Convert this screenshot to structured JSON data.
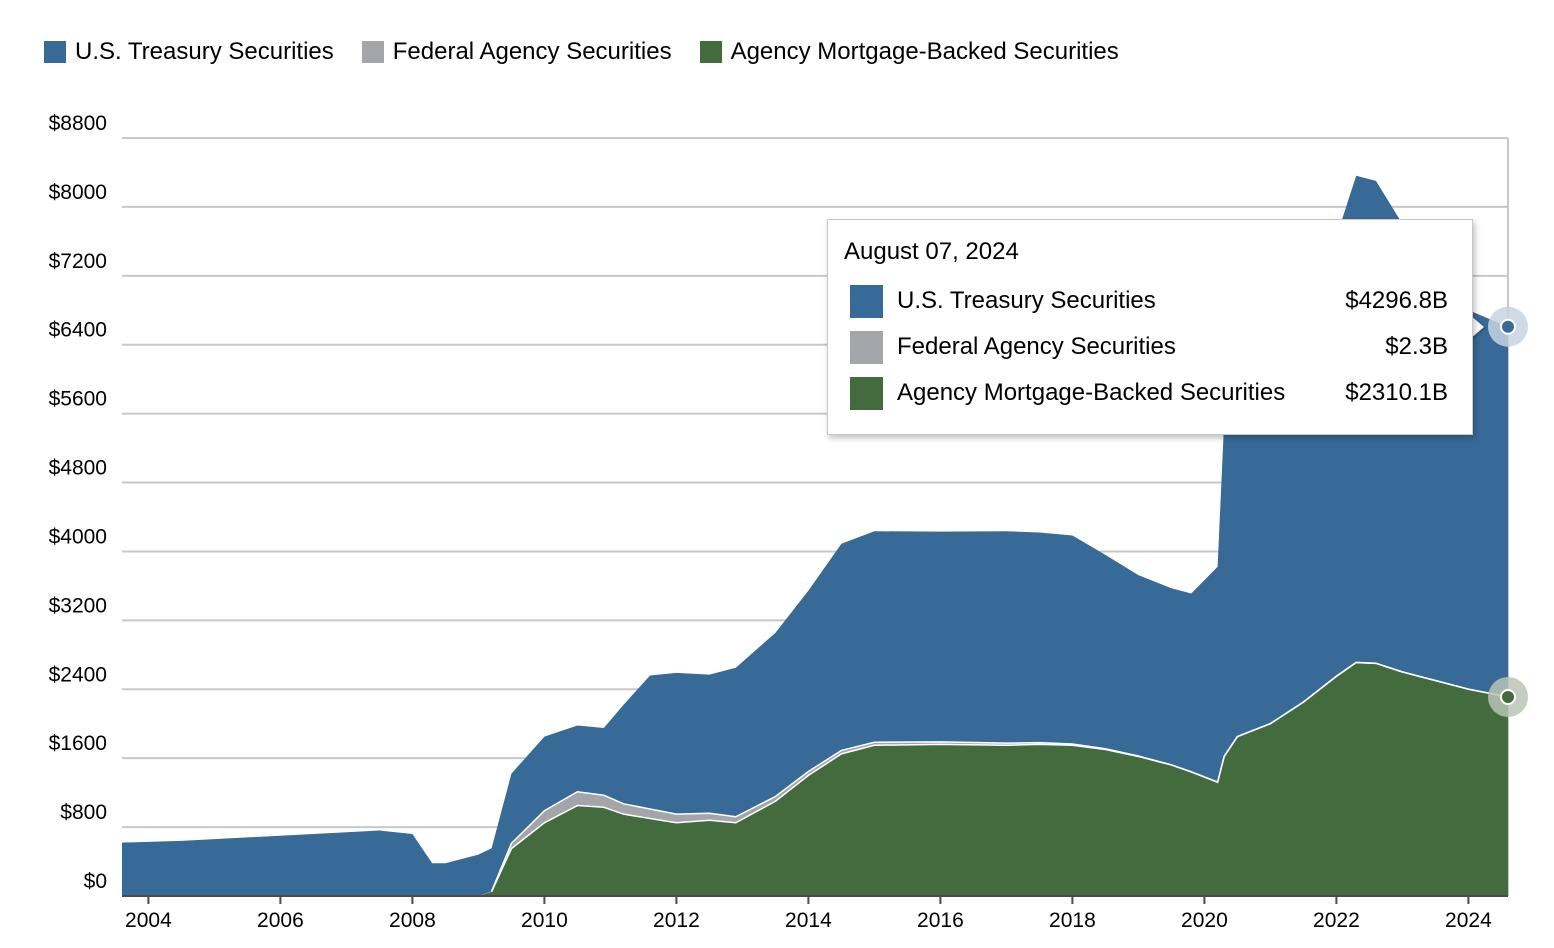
{
  "legend": [
    {
      "label": "U.S. Treasury Securities",
      "color": "#386a98"
    },
    {
      "label": "Federal Agency Securities",
      "color": "#a4a4ab"
    },
    {
      "label": "Agency Mortgage-Backed Securities",
      "color": "#436b3d"
    }
  ],
  "tooltip": {
    "date": "August 07, 2024",
    "rows": [
      {
        "label": "U.S. Treasury Securities",
        "value": "$4296.8B",
        "color": "#386a98"
      },
      {
        "label": "Federal Agency Securities",
        "value": "$2.3B",
        "color": "#a4a4ab"
      },
      {
        "label": "Agency Mortgage-Backed Securities",
        "value": "$2310.1B",
        "color": "#436b3d"
      }
    ]
  },
  "chart_data": {
    "type": "area",
    "stacked": true,
    "x_unit": "year",
    "xlim": [
      2003.6,
      2024.6
    ],
    "ylim": [
      0,
      8800
    ],
    "y_ticks": [
      0,
      800,
      1600,
      2400,
      3200,
      4000,
      4800,
      5600,
      6400,
      7200,
      8000,
      8800
    ],
    "y_tick_labels": [
      "$0",
      "$800",
      "$1600",
      "$2400",
      "$3200",
      "$4000",
      "$4800",
      "$5600",
      "$6400",
      "$7200",
      "$8000",
      "$8800"
    ],
    "x_ticks": [
      2004,
      2006,
      2008,
      2010,
      2012,
      2014,
      2016,
      2018,
      2020,
      2022,
      2024
    ],
    "x_tick_labels": [
      "2004",
      "2006",
      "2008",
      "2010",
      "2012",
      "2014",
      "2016",
      "2018",
      "2020",
      "2022",
      "2024"
    ],
    "grid": true,
    "legend_position": "top-left",
    "x": [
      2003.6,
      2004.5,
      2005.5,
      2006.5,
      2007.5,
      2008.0,
      2008.3,
      2008.5,
      2009.0,
      2009.2,
      2009.5,
      2010.0,
      2010.5,
      2010.9,
      2011.2,
      2011.6,
      2012.0,
      2012.5,
      2012.9,
      2013.5,
      2014.0,
      2014.5,
      2015.0,
      2016.0,
      2017.0,
      2017.5,
      2018.0,
      2018.5,
      2019.0,
      2019.5,
      2019.8,
      2020.2,
      2020.3,
      2020.5,
      2021.0,
      2021.5,
      2022.0,
      2022.3,
      2022.6,
      2023.0,
      2023.5,
      2024.0,
      2024.6
    ],
    "series": [
      {
        "name": "Agency Mortgage-Backed Securities",
        "color": "#436b3d",
        "values": [
          0,
          0,
          0,
          0,
          0,
          0,
          0,
          0,
          0,
          50,
          550,
          850,
          1050,
          1030,
          950,
          900,
          850,
          880,
          850,
          1100,
          1400,
          1650,
          1750,
          1760,
          1750,
          1760,
          1750,
          1700,
          1620,
          1520,
          1440,
          1320,
          1620,
          1850,
          2000,
          2250,
          2550,
          2710,
          2700,
          2600,
          2500,
          2400,
          2310.1
        ]
      },
      {
        "name": "Federal Agency Securities",
        "color": "#a4a4ab",
        "values": [
          0,
          0,
          0,
          0,
          0,
          0,
          0,
          0,
          0,
          5,
          60,
          140,
          160,
          140,
          120,
          110,
          100,
          80,
          70,
          55,
          45,
          40,
          35,
          30,
          25,
          20,
          15,
          10,
          5,
          3,
          2.5,
          2.5,
          2.5,
          2.5,
          2.5,
          2.4,
          2.4,
          2.4,
          2.4,
          2.4,
          2.4,
          2.3,
          2.3
        ]
      },
      {
        "name": "U.S. Treasury Securities",
        "color": "#386a98",
        "values": [
          620,
          640,
          680,
          720,
          760,
          720,
          380,
          380,
          480,
          500,
          810,
          860,
          770,
          780,
          1150,
          1550,
          1640,
          1610,
          1730,
          1900,
          2100,
          2400,
          2450,
          2440,
          2460,
          2440,
          2420,
          2250,
          2100,
          2050,
          2070,
          2500,
          3900,
          3700,
          3900,
          4000,
          5100,
          5650,
          5600,
          5200,
          4500,
          4400,
          4296.8
        ]
      }
    ]
  }
}
